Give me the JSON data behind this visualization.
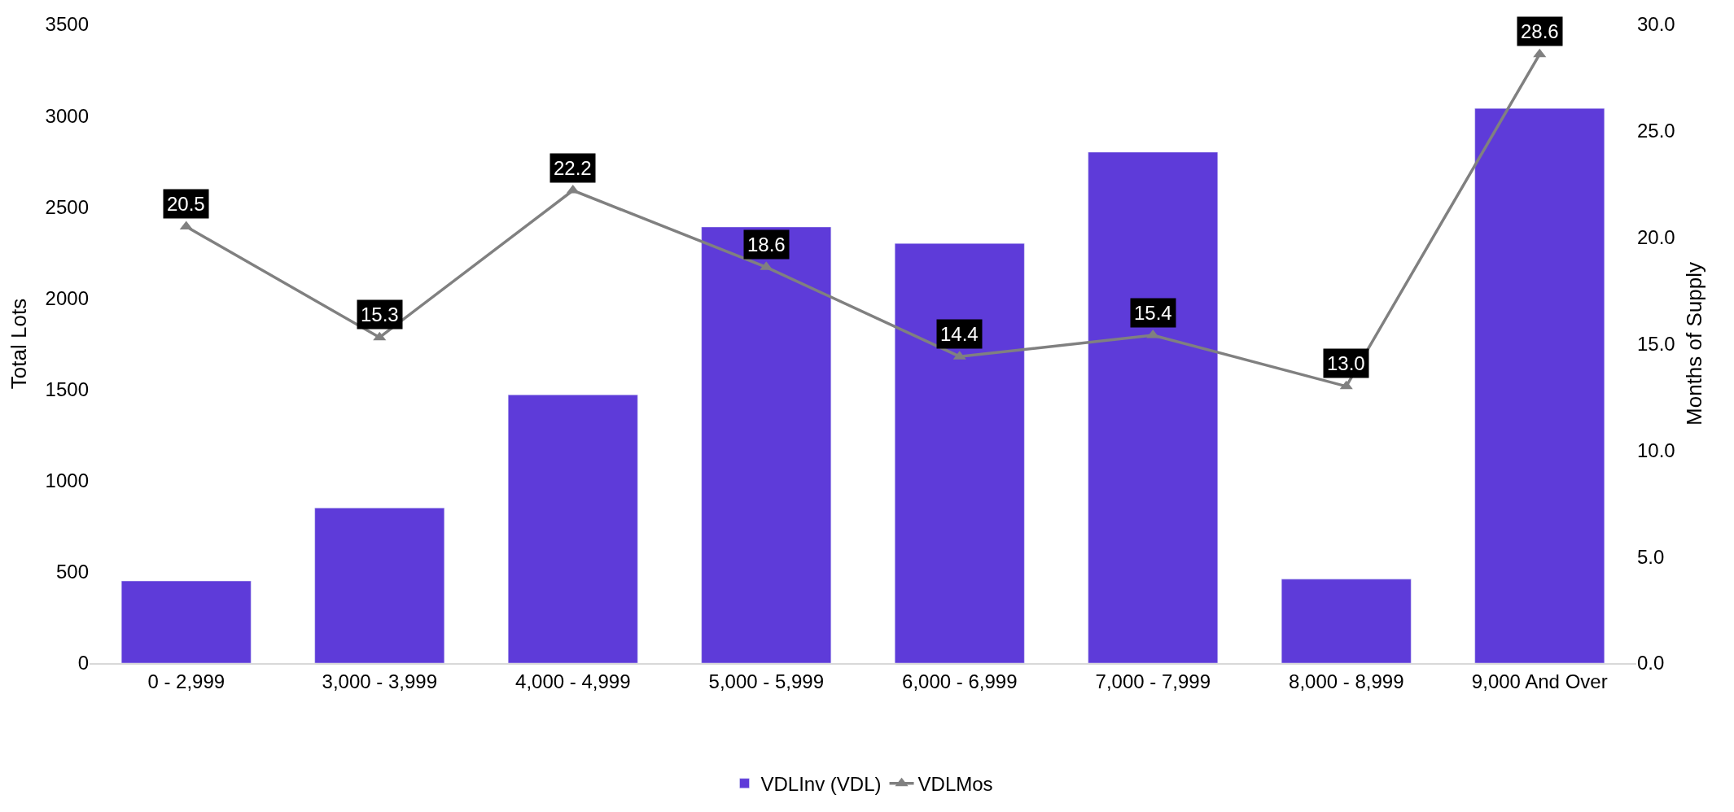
{
  "chart_data": {
    "type": "bar",
    "ylabel": "Total Lots",
    "y2label": "Months of Supply",
    "categories": [
      "0 - 2,999",
      "3,000 - 3,999",
      "4,000 - 4,999",
      "5,000 - 5,999",
      "6,000 - 6,999",
      "7,000 - 7,999",
      "8,000 - 8,999",
      "9,000 And Over"
    ],
    "series": [
      {
        "name": "VDLInv (VDL)",
        "color": "#5e3bd9",
        "values": [
          450,
          850,
          1470,
          2390,
          2300,
          2800,
          460,
          3040
        ]
      },
      {
        "name": "VDLMos",
        "type": "line",
        "axis": "y2",
        "color": "#808080",
        "marker": "triangle",
        "values": [
          20.5,
          15.3,
          22.2,
          18.6,
          14.4,
          15.4,
          13.0,
          28.6
        ],
        "value_labels": [
          "20.5",
          "15.3",
          "22.2",
          "18.6",
          "14.4",
          "15.4",
          "13.0",
          "28.6"
        ]
      }
    ],
    "ylim": [
      0,
      3500
    ],
    "yticks": [
      0,
      500,
      1000,
      1500,
      2000,
      2500,
      3000,
      3500
    ],
    "y2lim": [
      0,
      30
    ],
    "y2ticks": [
      {
        "value": 0,
        "label": "0.0"
      },
      {
        "value": 5,
        "label": "5.0"
      },
      {
        "value": 10,
        "label": "10.0"
      },
      {
        "value": 15,
        "label": "15.0"
      },
      {
        "value": 20,
        "label": "20.0"
      },
      {
        "value": 25,
        "label": "25.0"
      },
      {
        "value": 30,
        "label": "30.0"
      }
    ],
    "legend": "bottom"
  }
}
